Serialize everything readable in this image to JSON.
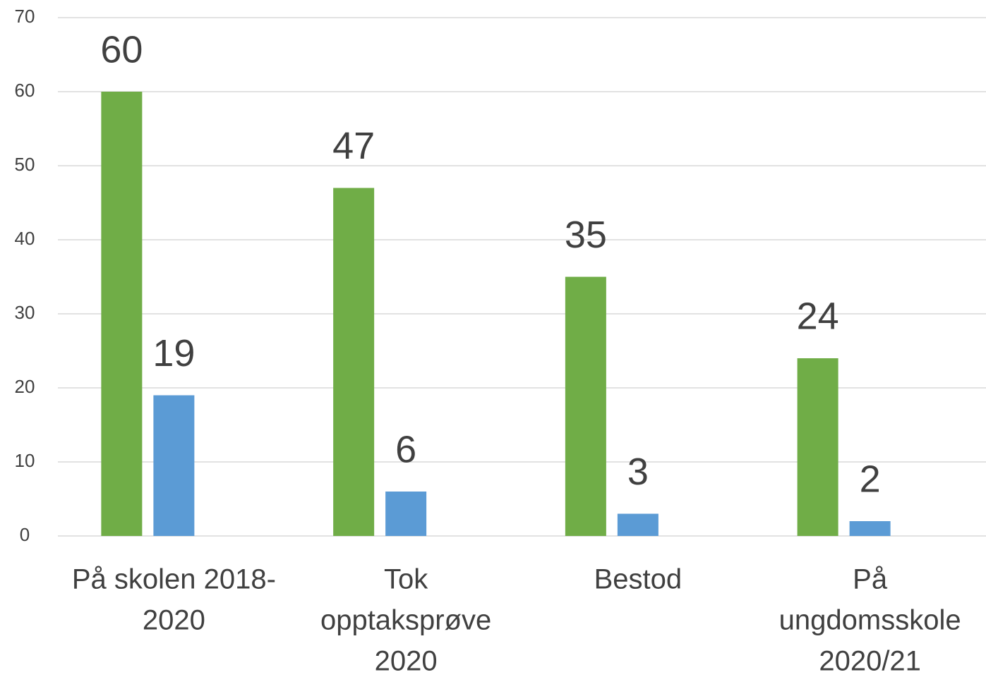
{
  "chart_data": {
    "type": "bar",
    "categories": [
      [
        "På skolen 2018-",
        "2020"
      ],
      [
        "Tok",
        "opptaksprøve",
        "2020"
      ],
      [
        "Bestod"
      ],
      [
        "På",
        "ungdomsskole",
        "2020/21"
      ]
    ],
    "series": [
      {
        "color": "#70ad47",
        "values": [
          60,
          47,
          35,
          24
        ]
      },
      {
        "color": "#5b9bd5",
        "values": [
          19,
          6,
          3,
          2
        ]
      }
    ],
    "ylim": [
      0,
      70
    ],
    "yticks": [
      0,
      10,
      20,
      30,
      40,
      50,
      60,
      70
    ],
    "grid": true
  }
}
